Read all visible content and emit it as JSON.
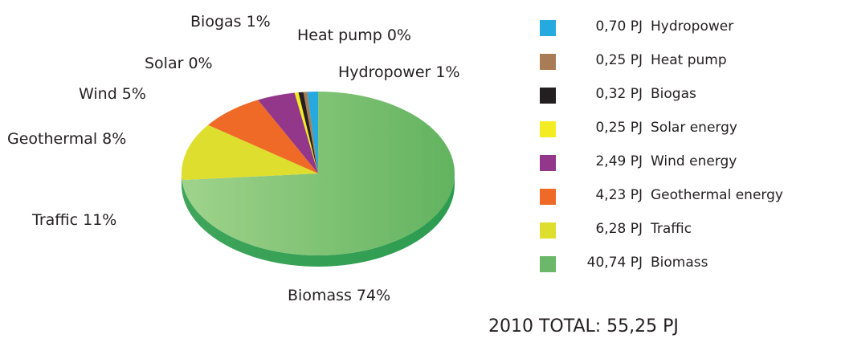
{
  "chart_data": {
    "type": "pie",
    "slices": [
      {
        "label": "Biomass 74%",
        "value": 40.74,
        "color": "#6cb86a"
      },
      {
        "label": "Traffic 11%",
        "value": 6.28,
        "color": "#dede2e"
      },
      {
        "label": "Geothermal 8%",
        "value": 4.23,
        "color": "#ee6a26"
      },
      {
        "label": "Wind 5%",
        "value": 2.49,
        "color": "#93378b"
      },
      {
        "label": "Solar 0%",
        "value": 0.25,
        "color": "#f4ec22"
      },
      {
        "label": "Biogas 1%",
        "value": 0.32,
        "color": "#231f20"
      },
      {
        "label": "Heat pump 0%",
        "value": 0.25,
        "color": "#a87c54"
      },
      {
        "label": "Hydropower 1%",
        "value": 0.7,
        "color": "#25a9df"
      }
    ],
    "legend": [
      {
        "value": "0,70 PJ",
        "name": "Hydropower",
        "color": "#25a9df"
      },
      {
        "value": "0,25 PJ",
        "name": "Heat pump",
        "color": "#a87c54"
      },
      {
        "value": "0,32 PJ",
        "name": "Biogas",
        "color": "#231f20"
      },
      {
        "value": "0,25 PJ",
        "name": "Solar energy",
        "color": "#f4ec22"
      },
      {
        "value": "2,49 PJ",
        "name": "Wind energy",
        "color": "#93378b"
      },
      {
        "value": "4,23 PJ",
        "name": "Geothermal energy",
        "color": "#ee6a26"
      },
      {
        "value": "6,28 PJ",
        "name": "Traffic",
        "color": "#dede2e"
      },
      {
        "value": "40,74 PJ",
        "name": "Biomass",
        "color": "#6cb86a"
      }
    ],
    "legend_position": "right",
    "total": "2010 TOTAL: 55,25 PJ"
  }
}
